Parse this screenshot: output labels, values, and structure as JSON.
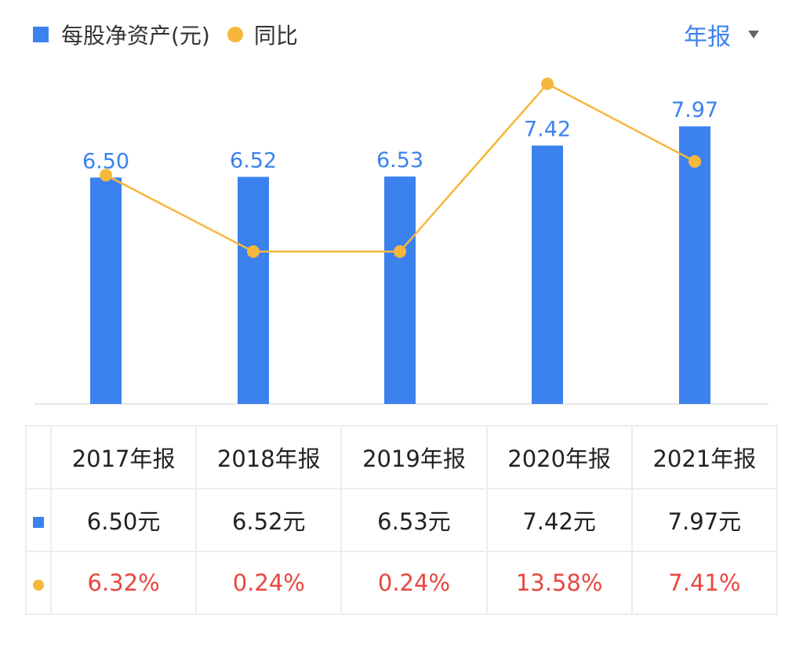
{
  "legend": {
    "series_bar_label": "每股净资产(元)",
    "series_line_label": "同比"
  },
  "period_selector": {
    "value": "年报"
  },
  "colors": {
    "bar": "#3b82ef",
    "line": "#f6b73c",
    "label": "#3b82ef",
    "pct_text": "#e8463f",
    "axis": "#e6e6e6"
  },
  "icons": {
    "dropdown": "caret-down-icon"
  },
  "chart_data": {
    "type": "bar",
    "categories": [
      "2017年报",
      "2018年报",
      "2019年报",
      "2020年报",
      "2021年报"
    ],
    "series": [
      {
        "name": "每股净资产(元)",
        "type": "bar",
        "values": [
          6.5,
          6.52,
          6.53,
          7.42,
          7.97
        ],
        "labels": [
          "6.50",
          "6.52",
          "6.53",
          "7.42",
          "7.97"
        ]
      },
      {
        "name": "同比",
        "type": "line",
        "unit": "%",
        "values": [
          6.32,
          0.24,
          0.24,
          13.58,
          7.41
        ]
      }
    ],
    "ylim": [
      0,
      8.6
    ],
    "y2lim": [
      -12,
      19
    ],
    "title": "",
    "xlabel": "",
    "ylabel": "",
    "grid": false,
    "legend_position": "top-left"
  },
  "table": {
    "headers": [
      "2017年报",
      "2018年报",
      "2019年报",
      "2020年报",
      "2021年报"
    ],
    "bar_row": [
      "6.50元",
      "6.52元",
      "6.53元",
      "7.42元",
      "7.97元"
    ],
    "pct_row": [
      "6.32%",
      "0.24%",
      "0.24%",
      "13.58%",
      "7.41%"
    ]
  }
}
